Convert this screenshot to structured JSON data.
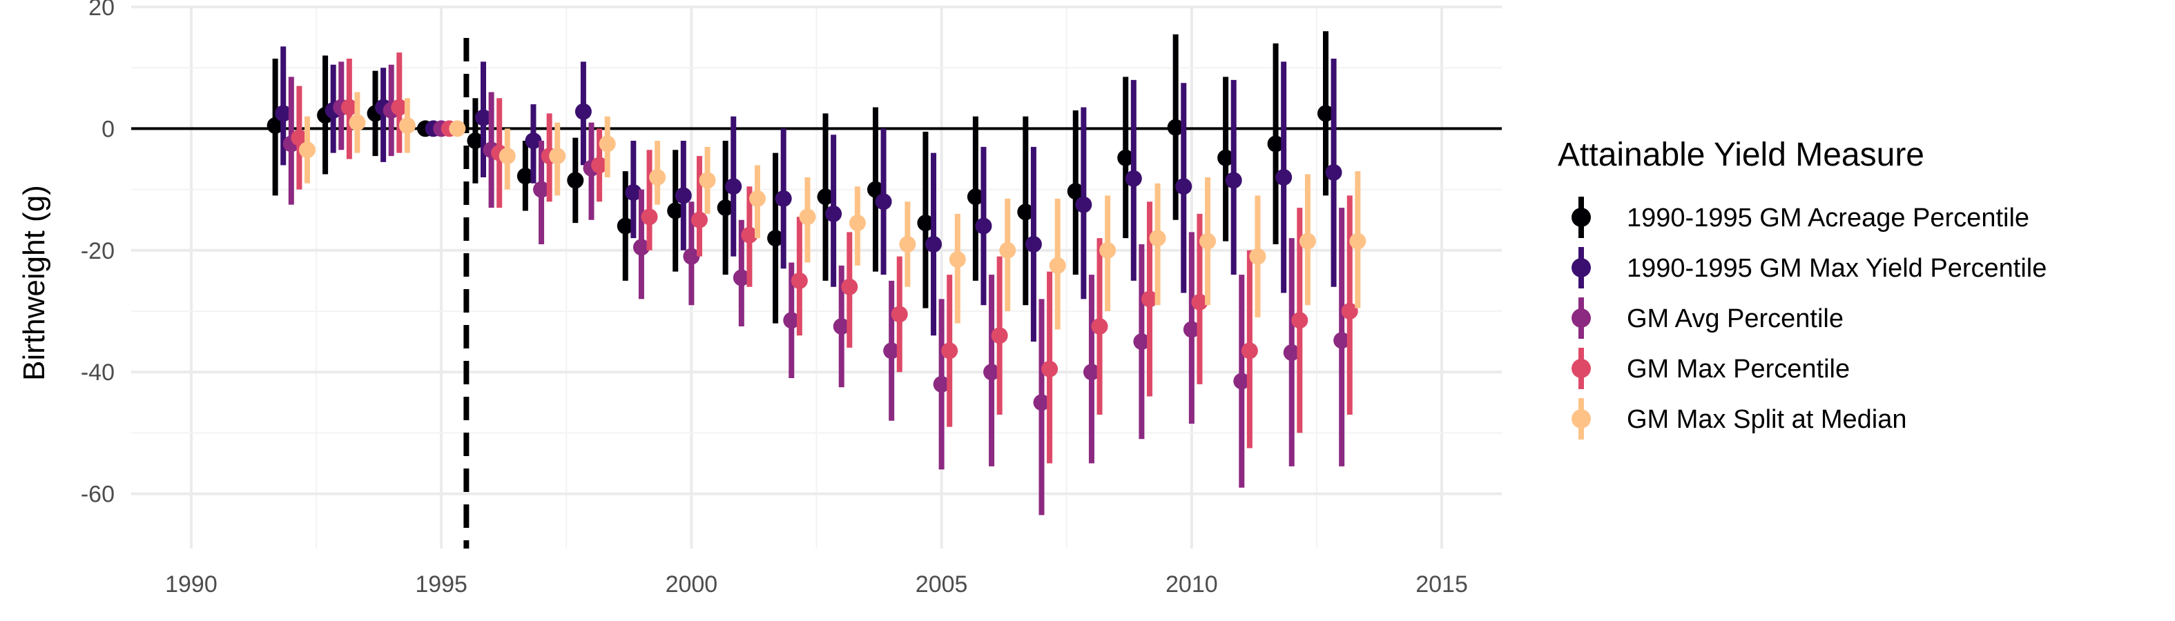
{
  "chart_data": {
    "type": "scatter",
    "subtype": "point-range (coefficient plot with confidence intervals)",
    "title": "",
    "xlabel": "",
    "ylabel": "Birthweight (g)",
    "xlim": [
      1988.8,
      2016.2
    ],
    "ylim": [
      -69,
      20
    ],
    "x_ticks": [
      1990,
      1995,
      2000,
      2005,
      2010,
      2015
    ],
    "x_tick_labels": [
      "1990",
      "1995",
      "2000",
      "2005",
      "2010",
      "2015"
    ],
    "y_ticks": [
      20,
      0,
      -20,
      -40,
      -60
    ],
    "y_tick_labels": [
      "20",
      "0",
      "-20",
      "-40",
      "-60"
    ],
    "grid": true,
    "reference_line_y": 0,
    "vertical_dashed_line_x": 1995.5,
    "legend": {
      "title": "Attainable Yield Measure",
      "placement": "right",
      "entries": [
        "1990-1995 GM Acreage Percentile",
        "1990-1995 GM Max Yield Percentile",
        "GM Avg Percentile",
        "GM Max Percentile",
        "GM Max Split at Median"
      ]
    },
    "x": [
      1992,
      1993,
      1994,
      1995,
      1996,
      1997,
      1998,
      1999,
      2000,
      2001,
      2002,
      2003,
      2004,
      2005,
      2006,
      2007,
      2008,
      2009,
      2010,
      2011,
      2012,
      2013
    ],
    "series": [
      {
        "name": "1990-1995 GM Acreage Percentile",
        "color": "#000004",
        "estimate": [
          0.5,
          2.2,
          2.5,
          0,
          -2,
          -7.8,
          -8.5,
          -16,
          -13.5,
          -13,
          -18,
          -11.2,
          -10,
          -15.5,
          -11.2,
          -13.7,
          -10.3,
          -4.8,
          0.2,
          -4.8,
          -2.5,
          2.5
        ],
        "lower": [
          -11,
          -7.5,
          -4.5,
          0,
          -9,
          -13.5,
          -15.5,
          -25,
          -23.5,
          -24,
          -32,
          -25,
          -23.5,
          -29.5,
          -25,
          -29,
          -24,
          -18,
          -15,
          -18.5,
          -19,
          -11
        ],
        "upper": [
          11.5,
          12,
          9.5,
          0,
          5,
          -2,
          -1.5,
          -7,
          -3.5,
          -2,
          -4,
          2.5,
          3.5,
          -0.5,
          2,
          2,
          3,
          8.5,
          15.5,
          8.5,
          14,
          16
        ]
      },
      {
        "name": "1990-1995 GM Max Yield Percentile",
        "color": "#3b0f70",
        "estimate": [
          2.5,
          3,
          3.5,
          0,
          1.8,
          -2,
          2.8,
          -10.5,
          -11,
          -9.5,
          -11.5,
          -14,
          -12,
          -19,
          -16,
          -19,
          -12.5,
          -8.2,
          -9.5,
          -8.5,
          -8,
          -7.2
        ],
        "lower": [
          -6,
          -4,
          -5.5,
          0,
          -8,
          -9,
          -6,
          -18,
          -20,
          -21,
          -23,
          -26,
          -24,
          -34,
          -29,
          -35,
          -28,
          -25,
          -27,
          -24,
          -27,
          -26
        ],
        "upper": [
          13.5,
          10.5,
          10,
          0,
          11,
          4,
          11,
          -2,
          -2,
          2,
          0,
          -1,
          0,
          -4,
          -3,
          -3,
          3.5,
          8,
          7.5,
          8,
          11,
          11.5
        ]
      },
      {
        "name": "GM Avg Percentile",
        "color": "#8c2981",
        "estimate": [
          -2.5,
          3.5,
          3,
          0,
          -3.5,
          -10,
          -6.5,
          -19.5,
          -21,
          -24.5,
          -31.5,
          -32.5,
          -36.5,
          -42,
          -40,
          -45,
          -40,
          -35,
          -33,
          -41.5,
          -36.8,
          -34.8
        ],
        "lower": [
          -12.5,
          -3.5,
          -4.5,
          0,
          -13,
          -19,
          -15,
          -28,
          -29,
          -32.5,
          -41,
          -42.5,
          -48,
          -56,
          -55.5,
          -63.5,
          -55,
          -51,
          -48.5,
          -59,
          -55.5,
          -55.5
        ],
        "upper": [
          8.5,
          11,
          10.5,
          0,
          6,
          -2,
          1,
          -10,
          -12,
          -15,
          -22,
          -22.5,
          -25,
          -28,
          -24,
          -28,
          -24,
          -19,
          -17,
          -24,
          -18,
          -13
        ]
      },
      {
        "name": "GM Max Percentile",
        "color": "#de4968",
        "estimate": [
          -1.5,
          3.5,
          3.5,
          0,
          -4,
          -4.5,
          -6,
          -14.5,
          -15,
          -17.5,
          -25,
          -26,
          -30.5,
          -36.5,
          -34,
          -39.5,
          -32.5,
          -28,
          -28.5,
          -36.5,
          -31.5,
          -30
        ],
        "lower": [
          -10,
          -5,
          -4,
          0,
          -13,
          -12,
          -12,
          -20,
          -21,
          -26,
          -34,
          -36,
          -40,
          -49,
          -47,
          -55,
          -47,
          -44,
          -42,
          -52.5,
          -50,
          -47
        ],
        "upper": [
          7,
          11.5,
          12.5,
          0,
          5,
          2.5,
          0,
          -3.5,
          -4.5,
          -9.5,
          -14.5,
          -17,
          -21,
          -24,
          -21,
          -23.5,
          -18,
          -12,
          -14,
          -20,
          -13,
          -11
        ]
      },
      {
        "name": "GM Max Split at Median",
        "color": "#fec287",
        "estimate": [
          -3.5,
          1,
          0.5,
          0,
          -4.5,
          -4.5,
          -2.5,
          -8,
          -8.5,
          -11.5,
          -14.5,
          -15.5,
          -19,
          -21.5,
          -20,
          -22.5,
          -20,
          -18,
          -18.5,
          -21,
          -18.5,
          -18.5
        ],
        "lower": [
          -9,
          -4,
          -4,
          0,
          -10,
          -11,
          -8,
          -12.5,
          -14,
          -18,
          -22,
          -22.5,
          -26,
          -32,
          -30,
          -33,
          -30,
          -29,
          -29,
          -31,
          -29,
          -29.5
        ],
        "upper": [
          2,
          6,
          5,
          0,
          0,
          1,
          2,
          -2,
          -3,
          -6,
          -8,
          -9.5,
          -12,
          -14,
          -11.5,
          -11.5,
          -11,
          -9,
          -8,
          -11,
          -7.5,
          -7
        ]
      }
    ]
  }
}
